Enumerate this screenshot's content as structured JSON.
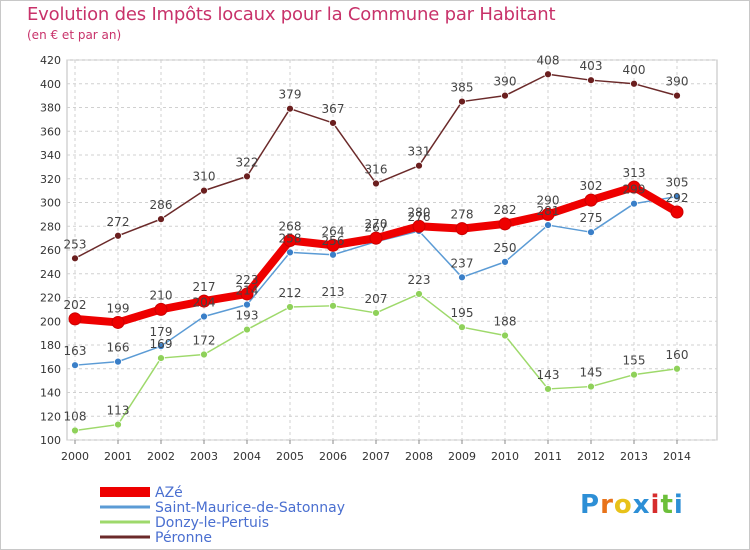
{
  "header": {
    "title": "Evolution des Impôts locaux pour la Commune par Habitant",
    "subtitle": "(en € et par an)"
  },
  "logo": {
    "letters": [
      "P",
      "r",
      "o",
      "x",
      "i",
      "t",
      "i"
    ],
    "colors": [
      "#2d8fd6",
      "#e8731a",
      "#e8c21a",
      "#2d8fd6",
      "#d62d2d",
      "#6cbf3a",
      "#2d8fd6"
    ]
  },
  "chart_data": {
    "type": "line",
    "title": "Evolution des Impôts locaux pour la Commune par Habitant",
    "subtitle": "(en € et par an)",
    "x": [
      "2000",
      "2001",
      "2002",
      "2003",
      "2004",
      "2005",
      "2006",
      "2007",
      "2008",
      "2009",
      "2010",
      "2011",
      "2012",
      "2013",
      "2014"
    ],
    "ylim": [
      100,
      420
    ],
    "yticks": [
      100,
      120,
      140,
      160,
      180,
      200,
      220,
      240,
      260,
      280,
      300,
      320,
      340,
      360,
      380,
      400,
      420
    ],
    "grid": true,
    "legend_position": "bottom-left",
    "series": [
      {
        "name": "AZé",
        "color": "#ee0000",
        "width": 8,
        "values": [
          202,
          199,
          210,
          217,
          223,
          268,
          264,
          270,
          280,
          278,
          282,
          290,
          302,
          313,
          292
        ]
      },
      {
        "name": "Saint-Maurice-de-Satonnay",
        "color": "#5b9bd5",
        "width": 1.5,
        "values": [
          163,
          166,
          179,
          204,
          214,
          258,
          256,
          267,
          276,
          237,
          250,
          281,
          275,
          299,
          305
        ]
      },
      {
        "name": "Donzy-le-Pertuis",
        "color": "#9ed96b",
        "width": 1.5,
        "values": [
          108,
          113,
          169,
          172,
          193,
          212,
          213,
          207,
          223,
          195,
          188,
          143,
          145,
          155,
          160
        ]
      },
      {
        "name": "Péronne",
        "color": "#6b2a2a",
        "width": 1.5,
        "values": [
          253,
          272,
          286,
          310,
          322,
          379,
          367,
          316,
          331,
          385,
          390,
          408,
          403,
          400,
          390
        ]
      }
    ],
    "point_labels": [
      {
        "series": 0,
        "labels": [
          "202",
          "199",
          "210",
          "217",
          "223",
          "268",
          "264",
          "270",
          "280",
          "278",
          "282",
          "290",
          "302",
          "313",
          "292"
        ]
      },
      {
        "series": 1,
        "labels": [
          "163",
          "166",
          "179",
          "204",
          "214",
          "258",
          "256",
          "267",
          "276",
          "237",
          "250",
          "281",
          "275",
          "299",
          "305"
        ]
      },
      {
        "series": 2,
        "labels": [
          "108",
          "113",
          "169",
          "172",
          "193",
          "212",
          "213",
          "207",
          "223",
          "195",
          "188",
          "143",
          "145",
          "155",
          "160"
        ]
      },
      {
        "series": 3,
        "labels": [
          "253",
          "272",
          "286",
          "310",
          "322",
          "379",
          "367",
          "316",
          "331",
          "385",
          "390",
          "408",
          "403",
          "400",
          "390"
        ]
      }
    ]
  }
}
